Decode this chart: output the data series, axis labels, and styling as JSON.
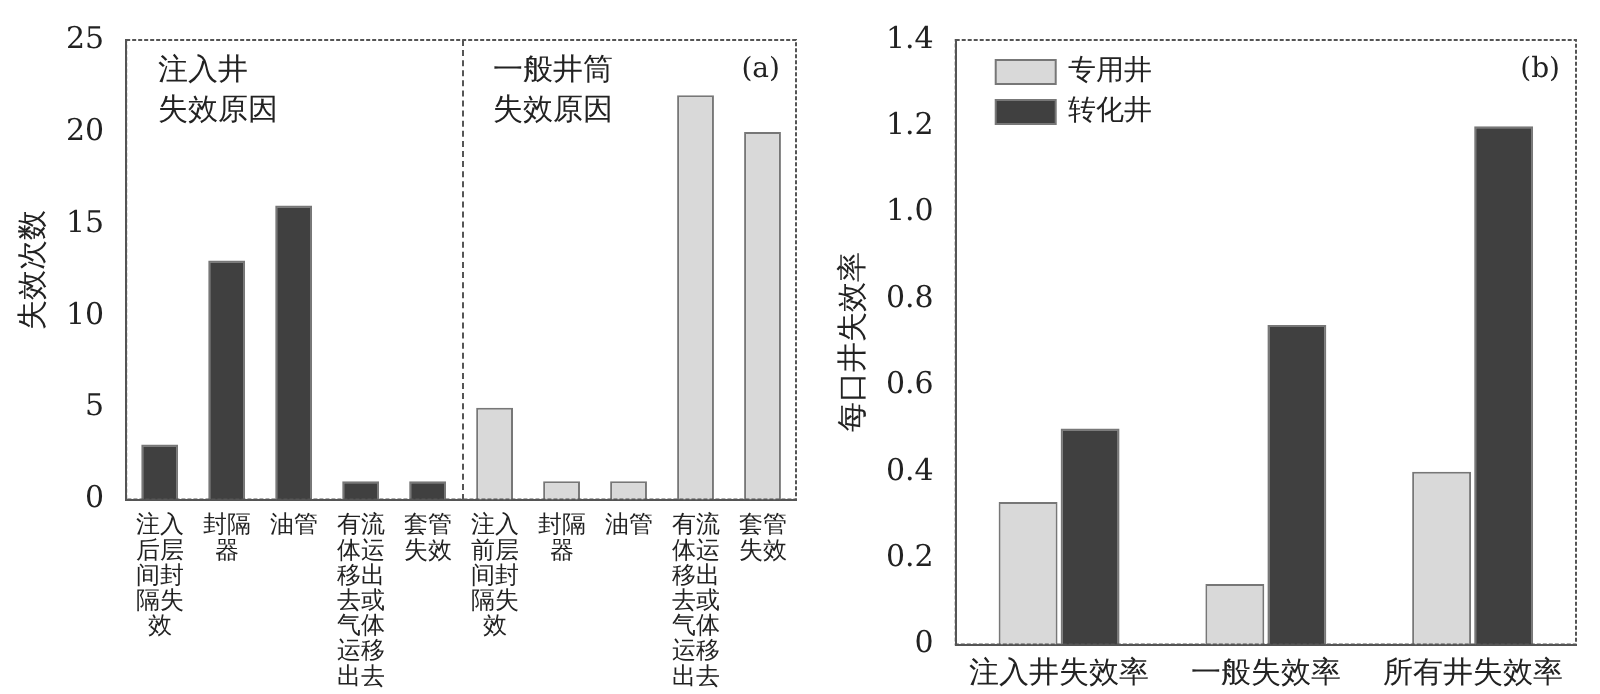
{
  "chart_data": [
    {
      "type": "bar",
      "ylabel": "失效次数",
      "categories": [
        "注入后层间封隔失效",
        "封隔器",
        "油管",
        "有流体运移出去或气体运移出去",
        "套管失效",
        "注入前层间封隔失效",
        "封隔器",
        "油管",
        "有流体运移出去或气体运移出去",
        "套管失效"
      ],
      "values": [
        3,
        13,
        16,
        1,
        1,
        5,
        1,
        1,
        22,
        20
      ],
      "colors": [
        "#404040",
        "#404040",
        "#404040",
        "#404040",
        "#404040",
        "#d9d9d9",
        "#d9d9d9",
        "#d9d9d9",
        "#d9d9d9",
        "#d9d9d9"
      ],
      "ylim": [
        0,
        25
      ],
      "yticks": [
        0,
        5,
        10,
        15,
        20,
        25
      ],
      "grid": false,
      "legend": false,
      "annotations": [
        "注入井失效原因",
        "一般井筒失效原因",
        "(a)"
      ]
    },
    {
      "type": "bar",
      "ylabel": "每口井失效率",
      "categories": [
        "注入井失效率",
        "一般失效率",
        "所有井失效率"
      ],
      "series": [
        {
          "name": "专用井",
          "color": "#d9d9d9",
          "values": [
            0.33,
            0.14,
            0.4
          ]
        },
        {
          "name": "转化井",
          "color": "#404040",
          "values": [
            0.5,
            0.74,
            1.2
          ]
        }
      ],
      "ylim": [
        0,
        1.4
      ],
      "yticks": [
        0,
        0.2,
        0.4,
        0.6,
        0.8,
        {
          "value": 1,
          "label": "1.0"
        },
        1.2,
        1.4
      ],
      "grid": false,
      "legend": "top left",
      "annotations": [
        "(b)"
      ]
    }
  ]
}
